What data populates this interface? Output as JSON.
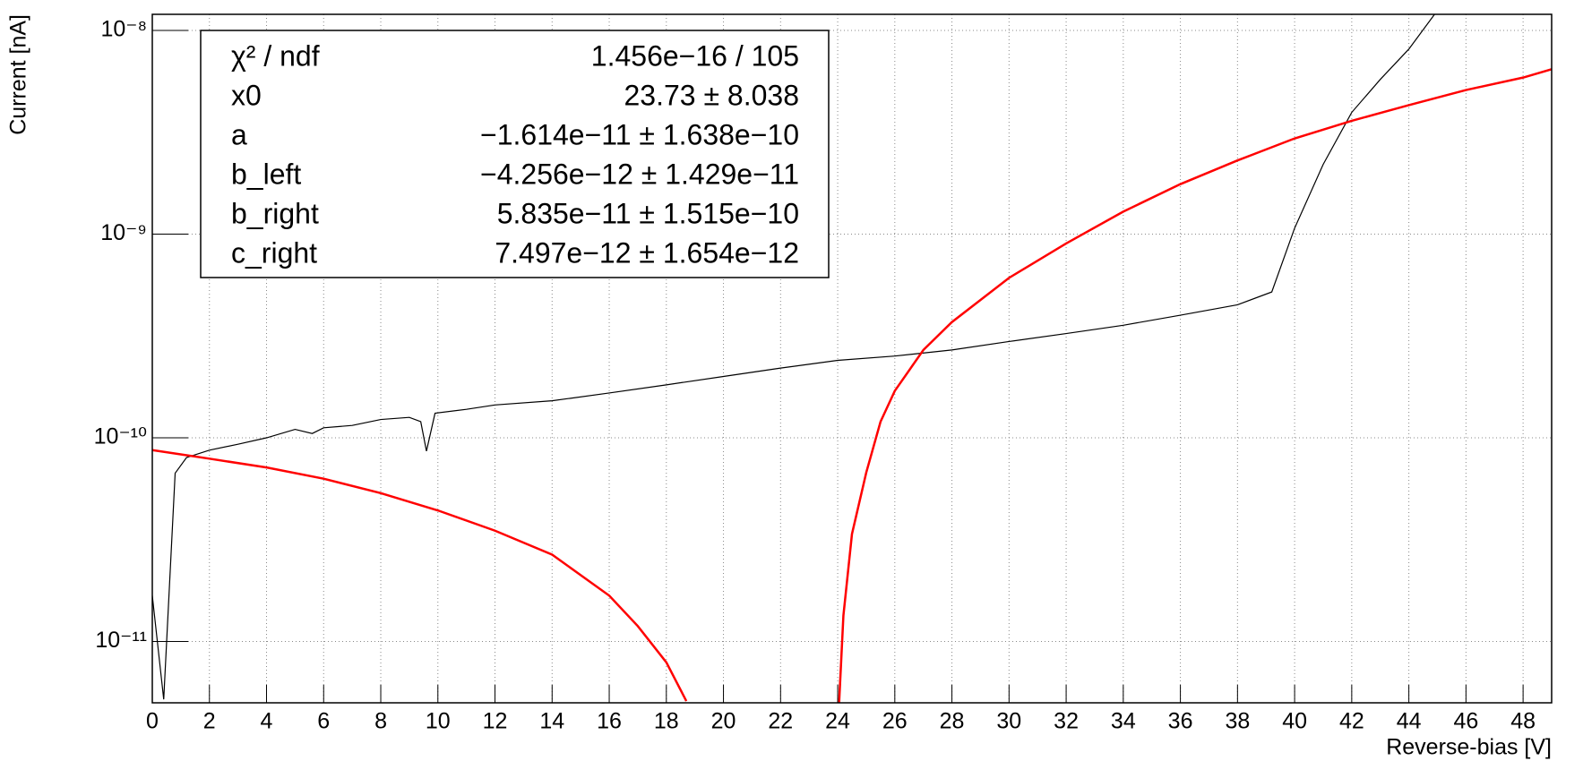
{
  "chart_data": {
    "type": "line",
    "x_label": "Reverse-bias [V]",
    "y_label": "Current [nA]",
    "xlim": [
      0,
      49
    ],
    "xticks": [
      0,
      2,
      4,
      6,
      8,
      10,
      12,
      14,
      16,
      18,
      20,
      22,
      24,
      26,
      28,
      30,
      32,
      34,
      36,
      38,
      40,
      42,
      44,
      46,
      48
    ],
    "ylim": [
      5e-12,
      1.2e-08
    ],
    "log_y": true,
    "grid": true,
    "yticks": [
      {
        "value": 1e-11,
        "label": "10⁻¹¹"
      },
      {
        "value": 1e-10,
        "label": "10⁻¹⁰"
      },
      {
        "value": 1e-09,
        "label": "10⁻⁹"
      },
      {
        "value": 1e-08,
        "label": "10⁻⁸"
      }
    ],
    "series": [
      {
        "color": "#000000",
        "x": [
          0,
          0.4,
          0.8,
          1.2,
          2,
          3,
          4,
          5,
          5.6,
          6,
          7,
          8,
          9,
          9.4,
          9.6,
          9.9,
          11,
          12,
          14,
          16,
          18,
          20,
          22,
          24,
          26,
          28,
          30,
          32,
          34,
          36,
          38,
          39.2,
          40,
          41,
          42,
          43,
          44,
          44.9
        ],
        "values": [
          1.68e-11,
          5.2e-12,
          6.7e-11,
          8e-11,
          8.7e-11,
          9.3e-11,
          1e-10,
          1.1e-10,
          1.05e-10,
          1.12e-10,
          1.15e-10,
          1.23e-10,
          1.26e-10,
          1.2e-10,
          8.6e-11,
          1.32e-10,
          1.38e-10,
          1.45e-10,
          1.52e-10,
          1.66e-10,
          1.82e-10,
          2e-10,
          2.2e-10,
          2.4e-10,
          2.52e-10,
          2.7e-10,
          2.97e-10,
          3.25e-10,
          3.57e-10,
          4e-10,
          4.5e-10,
          5.2e-10,
          1.07e-09,
          2.2e-09,
          3.96e-09,
          5.75e-09,
          8.1e-09,
          1.2e-08
        ]
      },
      {
        "color": "#ff0000",
        "x": [
          0,
          2,
          4,
          6,
          8,
          10,
          12,
          14,
          16,
          17,
          18,
          18.7
        ],
        "values": [
          8.7e-11,
          7.9e-11,
          7.15e-11,
          6.3e-11,
          5.35e-11,
          4.4e-11,
          3.5e-11,
          2.67e-11,
          1.68e-11,
          1.19e-11,
          7.9e-12,
          5.1e-12
        ]
      },
      {
        "color": "#ff0000",
        "x": [
          24.05,
          24.2,
          24.5,
          25,
          25.5,
          26,
          27,
          28,
          30,
          32,
          34,
          36,
          38,
          40,
          42,
          44,
          46,
          48,
          49
        ],
        "values": [
          5e-12,
          1.34e-11,
          3.37e-11,
          6.75e-11,
          1.2e-10,
          1.7e-10,
          2.7e-10,
          3.7e-10,
          6.1e-10,
          9e-10,
          1.29e-09,
          1.76e-09,
          2.3e-09,
          2.95e-09,
          3.6e-09,
          4.3e-09,
          5.1e-09,
          5.87e-09,
          6.45e-09
        ]
      }
    ],
    "stats": [
      {
        "label": "χ² / ndf",
        "value": "1.456e−16 / 105"
      },
      {
        "label": "x0",
        "value": "23.73 ± 8.038"
      },
      {
        "label": "a",
        "value": "−1.614e−11 ± 1.638e−10"
      },
      {
        "label": "b_left",
        "value": "−4.256e−12 ± 1.429e−11"
      },
      {
        "label": "b_right",
        "value": "5.835e−11 ± 1.515e−10"
      },
      {
        "label": "c_right",
        "value": "7.497e−12 ± 1.654e−12"
      }
    ]
  }
}
